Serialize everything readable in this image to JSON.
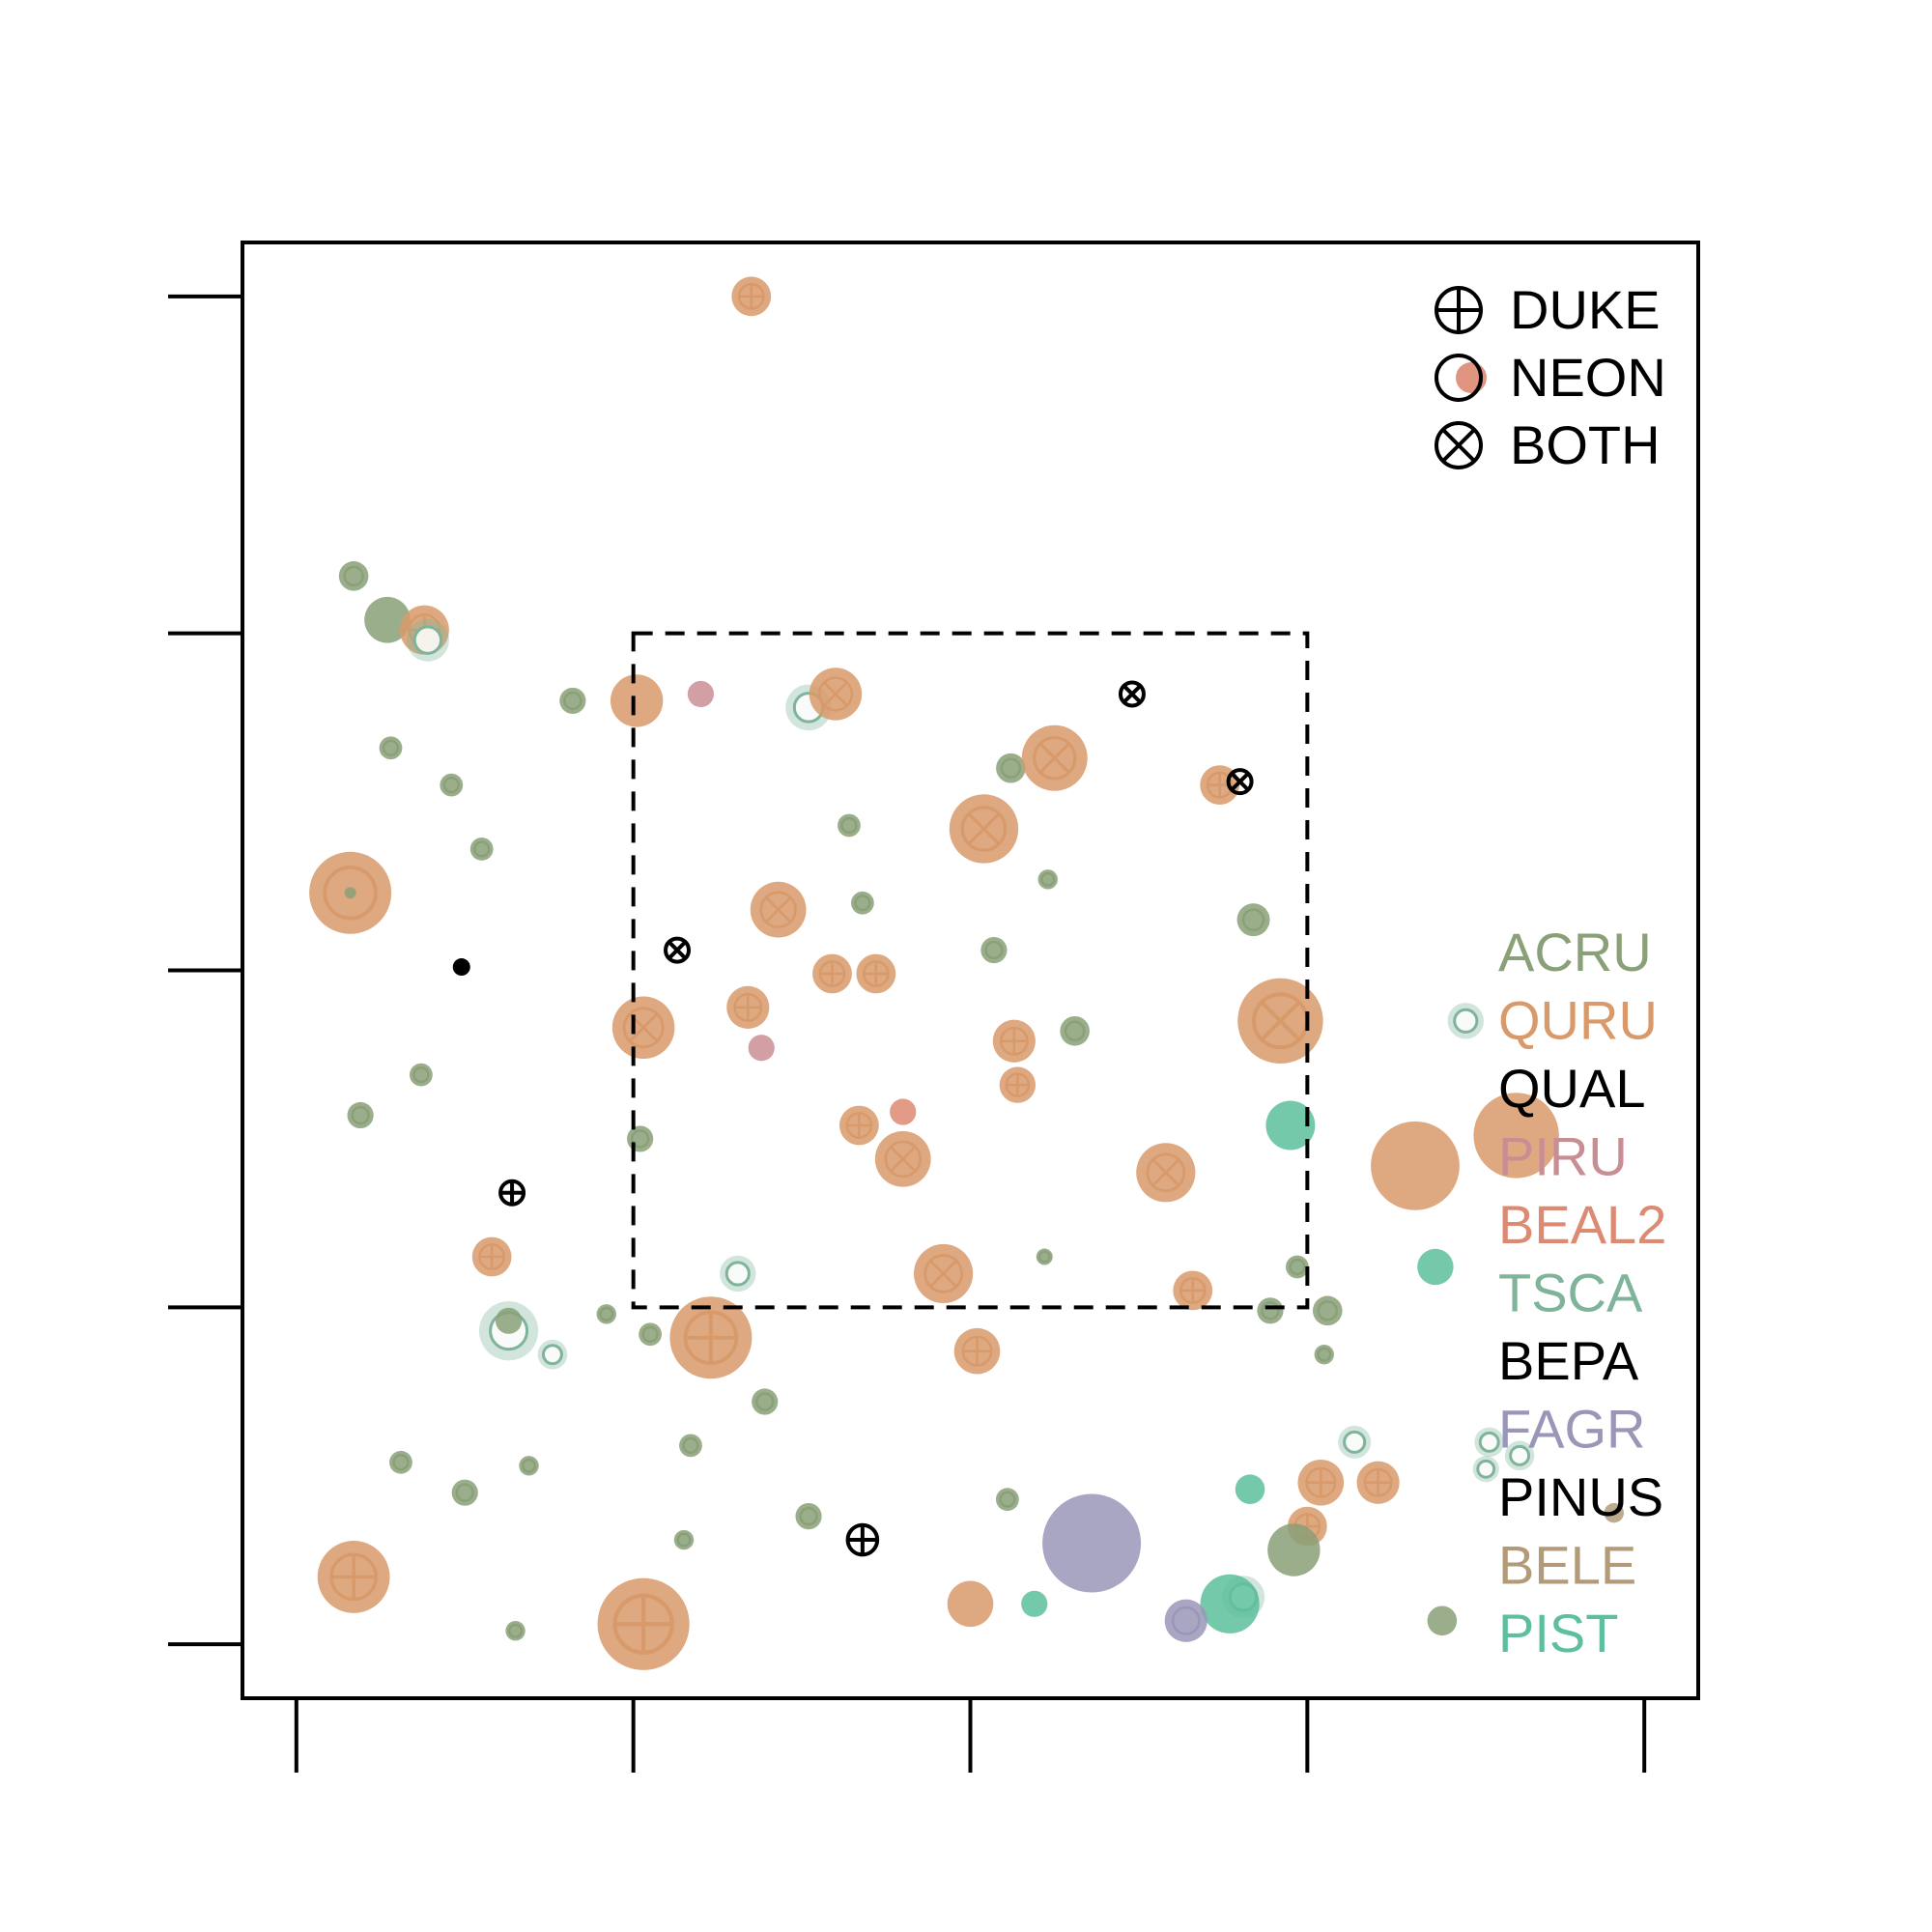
{
  "chart_data": {
    "type": "scatter",
    "title": "",
    "xlabel": "",
    "ylabel": "",
    "xlim": [
      -0.16,
      4.16
    ],
    "ylim": [
      -0.16,
      4.16
    ],
    "x_ticks": [
      0,
      1,
      2,
      3,
      4
    ],
    "y_ticks": [
      0,
      1,
      2,
      3,
      4
    ],
    "tick_labels_shown": false,
    "grid": false,
    "legend_position": "right",
    "inner_box": {
      "x": [
        1,
        3
      ],
      "y": [
        1,
        3
      ],
      "style": "dashed"
    },
    "symbol_legend": [
      {
        "label": "DUKE",
        "symbol": "plus"
      },
      {
        "label": "NEON",
        "symbol": "circle"
      },
      {
        "label": "BOTH",
        "symbol": "cross"
      }
    ],
    "species": [
      {
        "code": "ACRU",
        "color": "#8aa078"
      },
      {
        "code": "QURU",
        "color": "#d89a6a"
      },
      {
        "code": "QUAL",
        "color": "#000000"
      },
      {
        "code": "PIRU",
        "color": "#c98e94"
      },
      {
        "code": "BEAL2",
        "color": "#dc8a72"
      },
      {
        "code": "TSCA",
        "color": "#7fb49a"
      },
      {
        "code": "BEPA",
        "color": "#000000"
      },
      {
        "code": "FAGR",
        "color": "#9a96b8"
      },
      {
        "code": "PINUS",
        "color": "#000000"
      },
      {
        "code": "BELE",
        "color": "#b39b7a"
      },
      {
        "code": "PIST",
        "color": "#5dbf9c"
      }
    ],
    "points": [
      {
        "x": 1.35,
        "y": 4.0,
        "sp": "QURU",
        "r": 1.2,
        "sym": "plus"
      },
      {
        "x": 0.17,
        "y": 3.17,
        "sp": "ACRU",
        "r": 0.9,
        "sym": "circle"
      },
      {
        "x": 0.27,
        "y": 3.04,
        "sp": "ACRU",
        "r": 1.4,
        "sym": "none"
      },
      {
        "x": 0.38,
        "y": 3.01,
        "sp": "QURU",
        "r": 1.5,
        "sym": "plus"
      },
      {
        "x": 0.39,
        "y": 2.98,
        "sp": "TSCA",
        "r": 1.3,
        "sym": "circle"
      },
      {
        "x": 0.82,
        "y": 2.8,
        "sp": "ACRU",
        "r": 0.8,
        "sym": "circle"
      },
      {
        "x": 1.01,
        "y": 2.8,
        "sp": "QURU",
        "r": 1.6,
        "sym": "none"
      },
      {
        "x": 1.2,
        "y": 2.82,
        "sp": "PIRU",
        "r": 0.8,
        "sym": "none"
      },
      {
        "x": 1.52,
        "y": 2.78,
        "sp": "TSCA",
        "r": 1.4,
        "sym": "circle"
      },
      {
        "x": 1.6,
        "y": 2.82,
        "sp": "QURU",
        "r": 1.6,
        "sym": "cross"
      },
      {
        "x": 2.48,
        "y": 2.82,
        "sp": "PINUS",
        "r": 0.6,
        "sym": "cross"
      },
      {
        "x": 0.28,
        "y": 2.66,
        "sp": "ACRU",
        "r": 0.7,
        "sym": "circle"
      },
      {
        "x": 0.46,
        "y": 2.55,
        "sp": "ACRU",
        "r": 0.7,
        "sym": "circle"
      },
      {
        "x": 2.12,
        "y": 2.6,
        "sp": "ACRU",
        "r": 0.9,
        "sym": "circle"
      },
      {
        "x": 2.25,
        "y": 2.63,
        "sp": "QURU",
        "r": 2.0,
        "sym": "cross"
      },
      {
        "x": 2.74,
        "y": 2.55,
        "sp": "QURU",
        "r": 1.2,
        "sym": "plus"
      },
      {
        "x": 2.8,
        "y": 2.56,
        "sp": "PINUS",
        "r": 0.6,
        "sym": "cross"
      },
      {
        "x": 1.64,
        "y": 2.43,
        "sp": "ACRU",
        "r": 0.7,
        "sym": "circle"
      },
      {
        "x": 2.04,
        "y": 2.42,
        "sp": "QURU",
        "r": 2.1,
        "sym": "cross"
      },
      {
        "x": 0.55,
        "y": 2.36,
        "sp": "ACRU",
        "r": 0.7,
        "sym": "circle"
      },
      {
        "x": 0.16,
        "y": 2.23,
        "sp": "QURU",
        "r": 2.5,
        "sym": "circle"
      },
      {
        "x": 0.16,
        "y": 2.23,
        "sp": "ACRU",
        "r": 0.35,
        "sym": "none"
      },
      {
        "x": 2.23,
        "y": 2.27,
        "sp": "ACRU",
        "r": 0.6,
        "sym": "circle"
      },
      {
        "x": 1.68,
        "y": 2.2,
        "sp": "ACRU",
        "r": 0.7,
        "sym": "circle"
      },
      {
        "x": 1.43,
        "y": 2.18,
        "sp": "QURU",
        "r": 1.7,
        "sym": "cross"
      },
      {
        "x": 2.84,
        "y": 2.15,
        "sp": "ACRU",
        "r": 1.0,
        "sym": "circle"
      },
      {
        "x": 0.49,
        "y": 2.01,
        "sp": "QUAL",
        "r": 0.5,
        "sym": "none"
      },
      {
        "x": 1.13,
        "y": 2.06,
        "sp": "PINUS",
        "r": 0.6,
        "sym": "cross"
      },
      {
        "x": 2.07,
        "y": 2.06,
        "sp": "ACRU",
        "r": 0.8,
        "sym": "circle"
      },
      {
        "x": 1.59,
        "y": 1.99,
        "sp": "QURU",
        "r": 1.2,
        "sym": "plus"
      },
      {
        "x": 1.72,
        "y": 1.99,
        "sp": "QURU",
        "r": 1.2,
        "sym": "plus"
      },
      {
        "x": 1.34,
        "y": 1.89,
        "sp": "QURU",
        "r": 1.3,
        "sym": "plus"
      },
      {
        "x": 1.03,
        "y": 1.83,
        "sp": "QURU",
        "r": 1.9,
        "sym": "cross"
      },
      {
        "x": 2.92,
        "y": 1.85,
        "sp": "QURU",
        "r": 2.6,
        "sym": "cross"
      },
      {
        "x": 3.47,
        "y": 1.85,
        "sp": "TSCA",
        "r": 1.1,
        "sym": "circle"
      },
      {
        "x": 2.31,
        "y": 1.82,
        "sp": "ACRU",
        "r": 0.9,
        "sym": "circle"
      },
      {
        "x": 2.13,
        "y": 1.79,
        "sp": "QURU",
        "r": 1.3,
        "sym": "plus"
      },
      {
        "x": 1.38,
        "y": 1.77,
        "sp": "PIRU",
        "r": 0.8,
        "sym": "none"
      },
      {
        "x": 0.37,
        "y": 1.69,
        "sp": "ACRU",
        "r": 0.7,
        "sym": "circle"
      },
      {
        "x": 2.14,
        "y": 1.66,
        "sp": "QURU",
        "r": 1.1,
        "sym": "plus"
      },
      {
        "x": 0.19,
        "y": 1.57,
        "sp": "ACRU",
        "r": 0.8,
        "sym": "circle"
      },
      {
        "x": 1.8,
        "y": 1.58,
        "sp": "BEAL2",
        "r": 0.8,
        "sym": "none"
      },
      {
        "x": 1.67,
        "y": 1.54,
        "sp": "QURU",
        "r": 1.2,
        "sym": "plus"
      },
      {
        "x": 2.95,
        "y": 1.54,
        "sp": "PIST",
        "r": 1.5,
        "sym": "none"
      },
      {
        "x": 3.62,
        "y": 1.51,
        "sp": "QURU",
        "r": 2.6,
        "sym": "none"
      },
      {
        "x": 1.02,
        "y": 1.5,
        "sp": "ACRU",
        "r": 0.8,
        "sym": "circle"
      },
      {
        "x": 1.8,
        "y": 1.44,
        "sp": "QURU",
        "r": 1.7,
        "sym": "cross"
      },
      {
        "x": 3.32,
        "y": 1.42,
        "sp": "QURU",
        "r": 2.7,
        "sym": "none"
      },
      {
        "x": 2.58,
        "y": 1.4,
        "sp": "QURU",
        "r": 1.8,
        "sym": "cross"
      },
      {
        "x": 0.64,
        "y": 1.34,
        "sp": "PINUS",
        "r": 0.6,
        "sym": "plus"
      },
      {
        "x": 0.58,
        "y": 1.15,
        "sp": "QURU",
        "r": 1.2,
        "sym": "plus"
      },
      {
        "x": 2.97,
        "y": 1.12,
        "sp": "ACRU",
        "r": 0.7,
        "sym": "circle"
      },
      {
        "x": 3.38,
        "y": 1.12,
        "sp": "PIST",
        "r": 1.1,
        "sym": "none"
      },
      {
        "x": 2.22,
        "y": 1.15,
        "sp": "ACRU",
        "r": 0.5,
        "sym": "circle"
      },
      {
        "x": 1.31,
        "y": 1.1,
        "sp": "TSCA",
        "r": 1.1,
        "sym": "circle"
      },
      {
        "x": 1.92,
        "y": 1.1,
        "sp": "QURU",
        "r": 1.8,
        "sym": "cross"
      },
      {
        "x": 2.66,
        "y": 1.05,
        "sp": "QURU",
        "r": 1.2,
        "sym": "plus"
      },
      {
        "x": 0.92,
        "y": 0.98,
        "sp": "ACRU",
        "r": 0.6,
        "sym": "circle"
      },
      {
        "x": 2.89,
        "y": 0.99,
        "sp": "ACRU",
        "r": 0.8,
        "sym": "circle"
      },
      {
        "x": 3.06,
        "y": 0.99,
        "sp": "ACRU",
        "r": 0.9,
        "sym": "circle"
      },
      {
        "x": 0.63,
        "y": 0.93,
        "sp": "TSCA",
        "r": 1.8,
        "sym": "circle"
      },
      {
        "x": 0.63,
        "y": 0.96,
        "sp": "ACRU",
        "r": 0.8,
        "sym": "none"
      },
      {
        "x": 1.05,
        "y": 0.92,
        "sp": "ACRU",
        "r": 0.7,
        "sym": "circle"
      },
      {
        "x": 1.23,
        "y": 0.91,
        "sp": "QURU",
        "r": 2.5,
        "sym": "plus"
      },
      {
        "x": 0.76,
        "y": 0.86,
        "sp": "TSCA",
        "r": 0.9,
        "sym": "circle"
      },
      {
        "x": 2.02,
        "y": 0.87,
        "sp": "QURU",
        "r": 1.4,
        "sym": "plus"
      },
      {
        "x": 3.05,
        "y": 0.86,
        "sp": "ACRU",
        "r": 0.6,
        "sym": "circle"
      },
      {
        "x": 1.39,
        "y": 0.72,
        "sp": "ACRU",
        "r": 0.8,
        "sym": "circle"
      },
      {
        "x": 3.14,
        "y": 0.6,
        "sp": "TSCA",
        "r": 1.0,
        "sym": "circle"
      },
      {
        "x": 0.31,
        "y": 0.54,
        "sp": "ACRU",
        "r": 0.7,
        "sym": "circle"
      },
      {
        "x": 0.69,
        "y": 0.53,
        "sp": "ACRU",
        "r": 0.6,
        "sym": "circle"
      },
      {
        "x": 1.17,
        "y": 0.59,
        "sp": "ACRU",
        "r": 0.7,
        "sym": "circle"
      },
      {
        "x": 3.63,
        "y": 0.56,
        "sp": "TSCA",
        "r": 0.9,
        "sym": "circle"
      },
      {
        "x": 0.5,
        "y": 0.45,
        "sp": "ACRU",
        "r": 0.8,
        "sym": "circle"
      },
      {
        "x": 3.04,
        "y": 0.48,
        "sp": "QURU",
        "r": 1.4,
        "sym": "plus"
      },
      {
        "x": 3.21,
        "y": 0.48,
        "sp": "QURU",
        "r": 1.3,
        "sym": "plus"
      },
      {
        "x": 2.83,
        "y": 0.46,
        "sp": "PIST",
        "r": 0.9,
        "sym": "none"
      },
      {
        "x": 1.52,
        "y": 0.38,
        "sp": "ACRU",
        "r": 0.8,
        "sym": "circle"
      },
      {
        "x": 2.11,
        "y": 0.43,
        "sp": "ACRU",
        "r": 0.7,
        "sym": "circle"
      },
      {
        "x": 1.15,
        "y": 0.31,
        "sp": "ACRU",
        "r": 0.6,
        "sym": "circle"
      },
      {
        "x": 1.68,
        "y": 0.31,
        "sp": "PINUS",
        "r": 0.9,
        "sym": "plus"
      },
      {
        "x": 3.0,
        "y": 0.35,
        "sp": "QURU",
        "r": 1.2,
        "sym": "plus"
      },
      {
        "x": 2.96,
        "y": 0.28,
        "sp": "ACRU",
        "r": 1.6,
        "sym": "none"
      },
      {
        "x": 2.36,
        "y": 0.3,
        "sp": "FAGR",
        "r": 3.0,
        "sym": "none"
      },
      {
        "x": 0.17,
        "y": 0.2,
        "sp": "QURU",
        "r": 2.2,
        "sym": "plus"
      },
      {
        "x": 3.91,
        "y": 0.39,
        "sp": "BELE",
        "r": 0.6,
        "sym": "none"
      },
      {
        "x": 2.81,
        "y": 0.14,
        "sp": "TSCA",
        "r": 1.3,
        "sym": "circle"
      },
      {
        "x": 2.77,
        "y": 0.12,
        "sp": "PIST",
        "r": 1.8,
        "sym": "none"
      },
      {
        "x": 2.19,
        "y": 0.12,
        "sp": "PIST",
        "r": 0.8,
        "sym": "none"
      },
      {
        "x": 2.0,
        "y": 0.12,
        "sp": "QURU",
        "r": 1.4,
        "sym": "none"
      },
      {
        "x": 1.03,
        "y": 0.06,
        "sp": "QURU",
        "r": 2.8,
        "sym": "plus"
      },
      {
        "x": 2.64,
        "y": 0.07,
        "sp": "FAGR",
        "r": 1.3,
        "sym": "circle"
      },
      {
        "x": 0.65,
        "y": 0.04,
        "sp": "ACRU",
        "r": 0.6,
        "sym": "circle"
      },
      {
        "x": 3.4,
        "y": 0.07,
        "sp": "ACRU",
        "r": 0.9,
        "sym": "none"
      },
      {
        "x": 3.54,
        "y": 0.6,
        "sp": "TSCA",
        "r": 0.9,
        "sym": "circle"
      },
      {
        "x": 3.53,
        "y": 0.52,
        "sp": "TSCA",
        "r": 0.8,
        "sym": "circle"
      }
    ]
  }
}
